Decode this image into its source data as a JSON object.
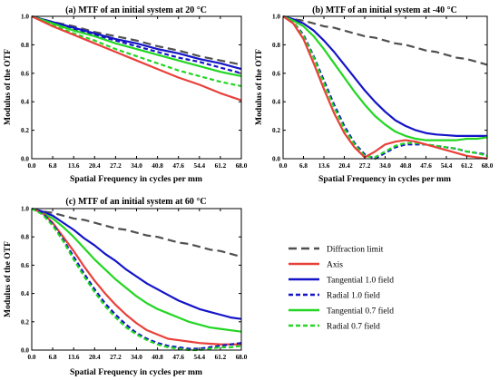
{
  "colors": {
    "diffraction": "#505050",
    "axis": "#e8403a",
    "blue": "#1414c8",
    "green": "#22d622"
  },
  "legend": {
    "entries": [
      {
        "key": "diff",
        "label": "Diffraction limit",
        "color": "#505050",
        "dash": true
      },
      {
        "key": "axis",
        "label": "Axis",
        "color": "#e8403a",
        "dash": false
      },
      {
        "key": "t10",
        "label": "Tangential 1.0 field",
        "color": "#1414c8",
        "dash": false
      },
      {
        "key": "r10",
        "label": "Radial 1.0 field",
        "color": "#1414c8",
        "dash": true
      },
      {
        "key": "t07",
        "label": "Tangential 0.7 field",
        "color": "#22d622",
        "dash": false
      },
      {
        "key": "r07",
        "label": "Radial 0.7 field",
        "color": "#22d622",
        "dash": true
      }
    ]
  },
  "chart_data": [
    {
      "type": "line",
      "title": "(a) MTF of an initial system at 20 °C",
      "xlabel": "Spatial Frequency in cycles per mm",
      "ylabel": "Modulus of the OTF",
      "xlim": [
        0,
        68
      ],
      "ylim": [
        0,
        1
      ],
      "xticks": [
        "0.0",
        "6.8",
        "13.6",
        "20.4",
        "27.2",
        "34.0",
        "40.8",
        "47.6",
        "54.4",
        "61.2",
        "68.0"
      ],
      "yticks": [
        "0.0",
        "0.2",
        "0.4",
        "0.6",
        "0.8",
        "1.0"
      ],
      "x": [
        0,
        6.8,
        13.6,
        20.4,
        27.2,
        34.0,
        40.8,
        47.6,
        54.4,
        61.2,
        68.0
      ],
      "series": [
        {
          "key": "diff",
          "values": [
            1.0,
            0.96,
            0.93,
            0.89,
            0.86,
            0.83,
            0.79,
            0.76,
            0.72,
            0.69,
            0.66
          ]
        },
        {
          "key": "t10",
          "values": [
            1.0,
            0.96,
            0.92,
            0.88,
            0.84,
            0.81,
            0.77,
            0.74,
            0.7,
            0.67,
            0.63
          ]
        },
        {
          "key": "r10",
          "values": [
            1.0,
            0.95,
            0.91,
            0.87,
            0.83,
            0.79,
            0.75,
            0.71,
            0.68,
            0.64,
            0.6
          ]
        },
        {
          "key": "t07",
          "values": [
            1.0,
            0.95,
            0.9,
            0.86,
            0.81,
            0.77,
            0.73,
            0.69,
            0.65,
            0.61,
            0.58
          ]
        },
        {
          "key": "r07",
          "values": [
            1.0,
            0.94,
            0.88,
            0.83,
            0.77,
            0.72,
            0.67,
            0.62,
            0.58,
            0.54,
            0.51
          ]
        },
        {
          "key": "axis",
          "values": [
            1.0,
            0.93,
            0.87,
            0.81,
            0.75,
            0.69,
            0.63,
            0.57,
            0.52,
            0.46,
            0.41
          ]
        }
      ]
    },
    {
      "type": "line",
      "title": "(b) MTF of an initial system at -40 °C",
      "xlabel": "Spatial Frequency in cycles per mm",
      "ylabel": "Modulus of the OTF",
      "xlim": [
        0,
        68
      ],
      "ylim": [
        0,
        1
      ],
      "xticks": [
        "0.0",
        "6.8",
        "13.6",
        "20.4",
        "27.2",
        "34.0",
        "40.8",
        "47.6",
        "54.4",
        "61.2",
        "68.0"
      ],
      "yticks": [
        "0.0",
        "0.2",
        "0.4",
        "0.6",
        "0.8",
        "1.0"
      ],
      "x": [
        0,
        3.4,
        6.8,
        10.2,
        13.6,
        17.0,
        20.4,
        23.8,
        27.2,
        30.6,
        34.0,
        37.4,
        40.8,
        44.2,
        47.6,
        51.0,
        54.4,
        57.8,
        61.2,
        64.6,
        68.0
      ],
      "series": [
        {
          "key": "diff",
          "values": [
            1.0,
            0.98,
            0.97,
            0.95,
            0.93,
            0.92,
            0.9,
            0.88,
            0.86,
            0.85,
            0.83,
            0.81,
            0.8,
            0.78,
            0.76,
            0.75,
            0.73,
            0.71,
            0.7,
            0.68,
            0.66
          ]
        },
        {
          "key": "t10",
          "values": [
            1.0,
            0.98,
            0.95,
            0.9,
            0.83,
            0.75,
            0.66,
            0.57,
            0.48,
            0.4,
            0.33,
            0.27,
            0.23,
            0.2,
            0.18,
            0.17,
            0.165,
            0.16,
            0.16,
            0.16,
            0.16
          ]
        },
        {
          "key": "t07",
          "values": [
            1.0,
            0.97,
            0.93,
            0.86,
            0.77,
            0.67,
            0.57,
            0.47,
            0.38,
            0.3,
            0.24,
            0.19,
            0.16,
            0.14,
            0.13,
            0.13,
            0.13,
            0.13,
            0.14,
            0.14,
            0.15
          ]
        },
        {
          "key": "r10",
          "values": [
            1.0,
            0.96,
            0.87,
            0.72,
            0.55,
            0.38,
            0.23,
            0.11,
            0.03,
            0.0,
            0.04,
            0.08,
            0.1,
            0.1,
            0.1,
            0.09,
            0.08,
            0.07,
            0.05,
            0.04,
            0.03
          ]
        },
        {
          "key": "r07",
          "values": [
            1.0,
            0.96,
            0.86,
            0.71,
            0.53,
            0.36,
            0.21,
            0.1,
            0.02,
            0.01,
            0.05,
            0.09,
            0.11,
            0.11,
            0.1,
            0.09,
            0.08,
            0.07,
            0.05,
            0.04,
            0.02
          ]
        },
        {
          "key": "axis",
          "values": [
            1.0,
            0.95,
            0.84,
            0.67,
            0.49,
            0.32,
            0.18,
            0.08,
            0.01,
            0.05,
            0.1,
            0.12,
            0.13,
            0.12,
            0.1,
            0.08,
            0.06,
            0.04,
            0.02,
            0.01,
            0.0
          ]
        }
      ]
    },
    {
      "type": "line",
      "title": "(c) MTF of an initial system at 60 °C",
      "xlabel": "Spatial Frequency in cycles per mm",
      "ylabel": "Modulus of the OTF",
      "xlim": [
        0,
        68
      ],
      "ylim": [
        0,
        1
      ],
      "xticks": [
        "0.0",
        "6.8",
        "13.6",
        "20.4",
        "27.2",
        "34.0",
        "40.8",
        "47.6",
        "54.4",
        "61.2",
        "68.0"
      ],
      "yticks": [
        "0.0",
        "0.2",
        "0.4",
        "0.6",
        "0.8",
        "1.0"
      ],
      "x": [
        0,
        3.4,
        6.8,
        10.2,
        13.6,
        17.0,
        20.4,
        23.8,
        27.2,
        30.6,
        34.0,
        37.4,
        40.8,
        44.2,
        47.6,
        51.0,
        54.4,
        57.8,
        61.2,
        64.6,
        68.0
      ],
      "series": [
        {
          "key": "diff",
          "values": [
            1.0,
            0.98,
            0.97,
            0.95,
            0.93,
            0.92,
            0.9,
            0.88,
            0.86,
            0.85,
            0.83,
            0.81,
            0.8,
            0.78,
            0.76,
            0.75,
            0.73,
            0.71,
            0.7,
            0.68,
            0.66
          ]
        },
        {
          "key": "t10",
          "values": [
            1.0,
            0.98,
            0.95,
            0.9,
            0.85,
            0.79,
            0.74,
            0.68,
            0.63,
            0.57,
            0.52,
            0.47,
            0.43,
            0.39,
            0.35,
            0.32,
            0.29,
            0.27,
            0.25,
            0.23,
            0.22
          ]
        },
        {
          "key": "t07",
          "values": [
            1.0,
            0.97,
            0.93,
            0.87,
            0.8,
            0.72,
            0.64,
            0.57,
            0.5,
            0.44,
            0.38,
            0.33,
            0.29,
            0.26,
            0.23,
            0.2,
            0.18,
            0.16,
            0.15,
            0.14,
            0.13
          ]
        },
        {
          "key": "axis",
          "values": [
            1.0,
            0.97,
            0.9,
            0.8,
            0.7,
            0.59,
            0.49,
            0.4,
            0.32,
            0.25,
            0.19,
            0.14,
            0.11,
            0.08,
            0.07,
            0.06,
            0.05,
            0.045,
            0.04,
            0.04,
            0.04
          ]
        },
        {
          "key": "r10",
          "values": [
            1.0,
            0.97,
            0.89,
            0.78,
            0.66,
            0.54,
            0.43,
            0.33,
            0.25,
            0.18,
            0.12,
            0.08,
            0.05,
            0.03,
            0.02,
            0.01,
            0.01,
            0.02,
            0.03,
            0.04,
            0.05
          ]
        },
        {
          "key": "r07",
          "values": [
            1.0,
            0.96,
            0.88,
            0.77,
            0.64,
            0.52,
            0.41,
            0.31,
            0.23,
            0.16,
            0.11,
            0.07,
            0.04,
            0.02,
            0.01,
            0.0,
            0.0,
            0.01,
            0.02,
            0.02,
            0.03
          ]
        }
      ]
    }
  ]
}
